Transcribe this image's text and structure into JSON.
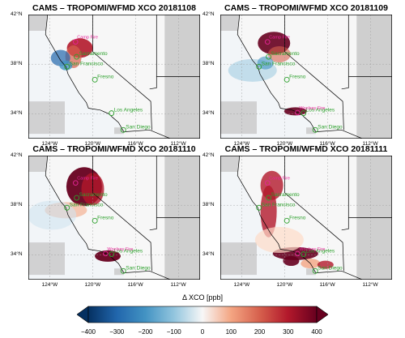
{
  "panels": [
    {
      "title": "CAMS – TROPOMI/WFMD XCO 20181108",
      "date": "20181108",
      "fire_labels": [
        "Camp Fire"
      ]
    },
    {
      "title": "CAMS – TROPOMI/WFMD XCO 20181109",
      "date": "20181109",
      "fire_labels": [
        "Camp Fire",
        "Woolsey Fire"
      ]
    },
    {
      "title": "CAMS – TROPOMI/WFMD XCO 20181110",
      "date": "20181110",
      "fire_labels": [
        "Camp Fire",
        "Woolsey Fire"
      ]
    },
    {
      "title": "CAMS – TROPOMI/WFMD XCO 20181111",
      "date": "20181111",
      "fire_labels": [
        "Camp Fire",
        "Woolsey Fire"
      ]
    }
  ],
  "cities": [
    "Sacramento",
    "San Francisco",
    "Fresno",
    "Los Angeles",
    "San Diego"
  ],
  "lat_ticks": [
    "42°N",
    "38°N",
    "34°N"
  ],
  "lon_ticks": [
    "124°W",
    "120°W",
    "116°W",
    "112°W"
  ],
  "colorbar": {
    "label": "Δ XCO [ppb]",
    "ticks": [
      "−400",
      "−300",
      "−200",
      "−100",
      "0",
      "100",
      "200",
      "300",
      "400"
    ],
    "min": -400,
    "max": 400,
    "colormap": "RdBu_r"
  },
  "colors": {
    "fire_label": "#e8259a",
    "city_label": "#2ca02c",
    "no_data": "#c8c8c8",
    "border": "#000000"
  }
}
